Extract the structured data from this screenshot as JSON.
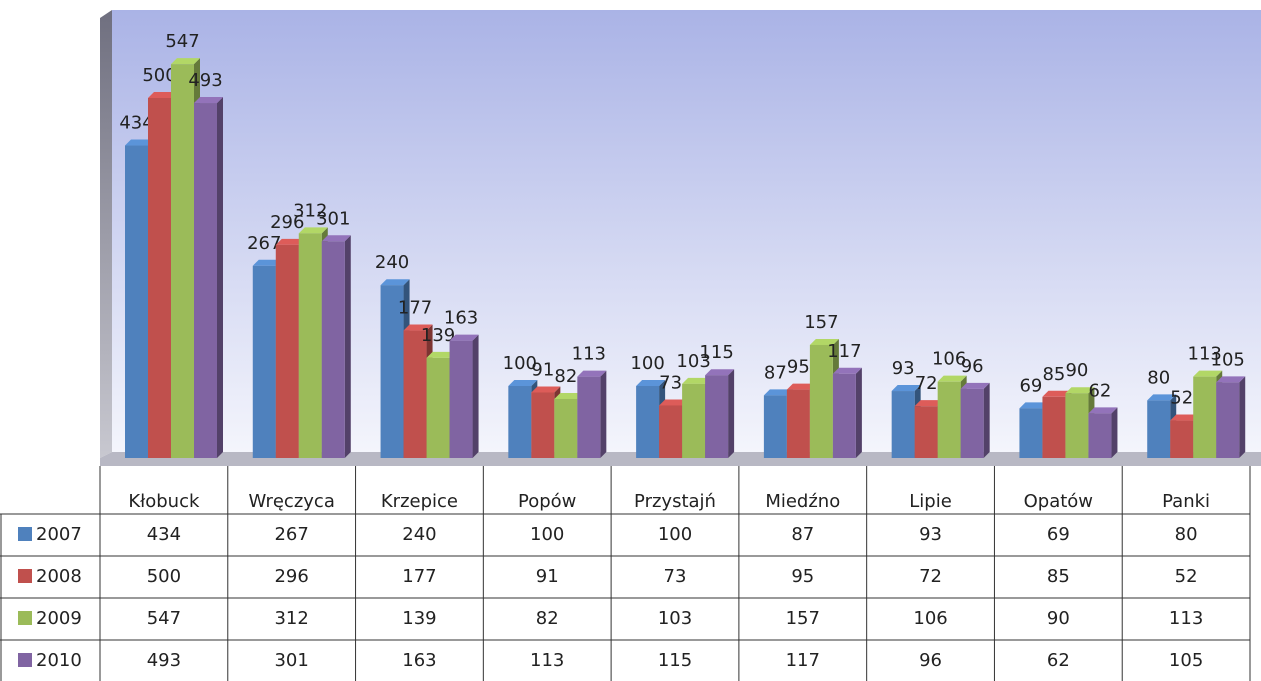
{
  "chart_data": {
    "type": "bar",
    "categories": [
      "Kłobuck",
      "Wręczyca",
      "Krzepice",
      "Popów",
      "Przystajń",
      "Miedźno",
      "Lipie",
      "Opatów",
      "Panki"
    ],
    "series": [
      {
        "name": "2007",
        "color": "#4f81bd",
        "values": [
          434,
          267,
          240,
          100,
          100,
          87,
          93,
          69,
          80
        ]
      },
      {
        "name": "2008",
        "color": "#c0504d",
        "values": [
          500,
          296,
          177,
          91,
          73,
          95,
          72,
          85,
          52
        ]
      },
      {
        "name": "2009",
        "color": "#9bbb59",
        "values": [
          547,
          312,
          139,
          82,
          103,
          157,
          106,
          90,
          113
        ]
      },
      {
        "name": "2010",
        "color": "#8064a2",
        "values": [
          493,
          301,
          163,
          113,
          115,
          117,
          96,
          62,
          105
        ]
      }
    ],
    "ylim": [
      0,
      600
    ]
  }
}
